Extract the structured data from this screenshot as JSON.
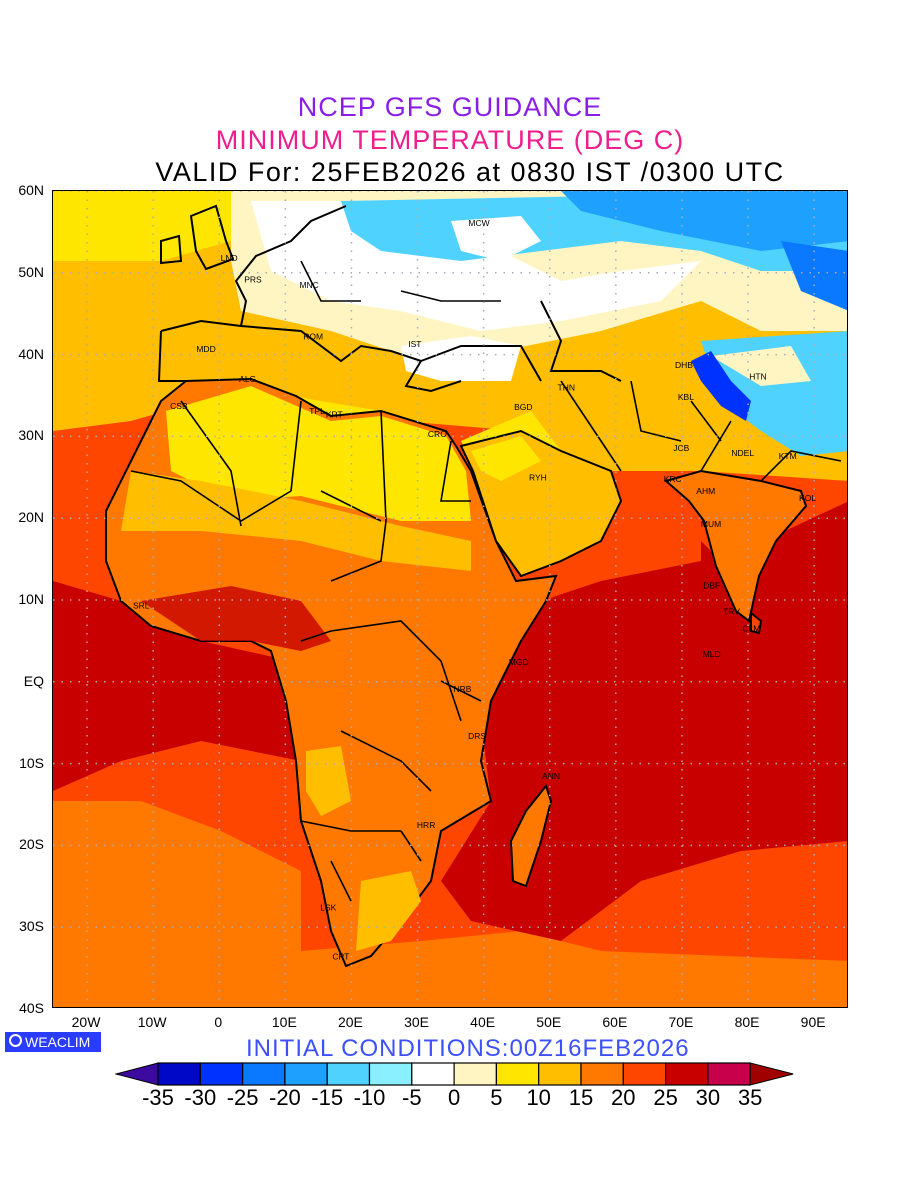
{
  "header": {
    "line1": "NCEP GFS GUIDANCE",
    "line2": "MINIMUM TEMPERATURE (DEG C)",
    "line3": "VALID For: 25FEB2026 at 0830 IST /0300 UTC"
  },
  "axes": {
    "lat_ticks": [
      {
        "value": 60,
        "label": "60N"
      },
      {
        "value": 50,
        "label": "50N"
      },
      {
        "value": 40,
        "label": "40N"
      },
      {
        "value": 30,
        "label": "30N"
      },
      {
        "value": 20,
        "label": "20N"
      },
      {
        "value": 10,
        "label": "10N"
      },
      {
        "value": 0,
        "label": "EQ"
      },
      {
        "value": -10,
        "label": "10S"
      },
      {
        "value": -20,
        "label": "20S"
      },
      {
        "value": -30,
        "label": "30S"
      },
      {
        "value": -40,
        "label": "40S"
      }
    ],
    "lon_ticks": [
      {
        "value": -20,
        "label": "20W"
      },
      {
        "value": -10,
        "label": "10W"
      },
      {
        "value": 0,
        "label": "0"
      },
      {
        "value": 10,
        "label": "10E"
      },
      {
        "value": 20,
        "label": "20E"
      },
      {
        "value": 30,
        "label": "30E"
      },
      {
        "value": 40,
        "label": "40E"
      },
      {
        "value": 50,
        "label": "50E"
      },
      {
        "value": 60,
        "label": "60E"
      },
      {
        "value": 70,
        "label": "70E"
      },
      {
        "value": 80,
        "label": "80E"
      },
      {
        "value": 90,
        "label": "90E"
      }
    ],
    "lon_range": [
      -25,
      95
    ],
    "lat_range": [
      -40,
      60
    ]
  },
  "cities": [
    {
      "name": "MCW",
      "lon": 39.3,
      "lat": 56.1
    },
    {
      "name": "LND",
      "lon": 1.5,
      "lat": 51.8
    },
    {
      "name": "PRS",
      "lon": 5.1,
      "lat": 49.2
    },
    {
      "name": "MNC",
      "lon": 13.6,
      "lat": 48.5
    },
    {
      "name": "ROM",
      "lon": 14.2,
      "lat": 42.2
    },
    {
      "name": "MDD",
      "lon": -2,
      "lat": 40.7
    },
    {
      "name": "IST",
      "lon": 29.6,
      "lat": 41.3
    },
    {
      "name": "ALG",
      "lon": 4.3,
      "lat": 37
    },
    {
      "name": "CSB",
      "lon": -6.1,
      "lat": 33.7
    },
    {
      "name": "TPL",
      "lon": 14.8,
      "lat": 33.1
    },
    {
      "name": "KRT",
      "lon": 17.4,
      "lat": 32.7
    },
    {
      "name": "CRO",
      "lon": 33,
      "lat": 30.3
    },
    {
      "name": "BGD",
      "lon": 46,
      "lat": 33.6
    },
    {
      "name": "THN",
      "lon": 52.5,
      "lat": 36
    },
    {
      "name": "RYH",
      "lon": 48.2,
      "lat": 25
    },
    {
      "name": "DHB",
      "lon": 70.3,
      "lat": 38.7
    },
    {
      "name": "HTN",
      "lon": 81.5,
      "lat": 37.3
    },
    {
      "name": "KBL",
      "lon": 70.6,
      "lat": 34.8
    },
    {
      "name": "JCB",
      "lon": 69.9,
      "lat": 28.6
    },
    {
      "name": "NDEL",
      "lon": 79.2,
      "lat": 28
    },
    {
      "name": "KTM",
      "lon": 86,
      "lat": 27.6
    },
    {
      "name": "KRC",
      "lon": 68.6,
      "lat": 24.8
    },
    {
      "name": "AHM",
      "lon": 73.6,
      "lat": 23.3
    },
    {
      "name": "KOL",
      "lon": 89,
      "lat": 22.5
    },
    {
      "name": "MUM",
      "lon": 74.4,
      "lat": 19.3
    },
    {
      "name": "DBF",
      "lon": 74.5,
      "lat": 11.8
    },
    {
      "name": "TRV",
      "lon": 77.5,
      "lat": 8.6
    },
    {
      "name": "CLM",
      "lon": 80.5,
      "lat": 6.5
    },
    {
      "name": "MLD",
      "lon": 74.5,
      "lat": 3.4
    },
    {
      "name": "SRL",
      "lon": -11.8,
      "lat": 9.3
    },
    {
      "name": "MGD",
      "lon": 45.3,
      "lat": 2.4
    },
    {
      "name": "NRB",
      "lon": 36.8,
      "lat": -0.9
    },
    {
      "name": "DRS",
      "lon": 39,
      "lat": -6.6
    },
    {
      "name": "ANN",
      "lon": 50.2,
      "lat": -11.5
    },
    {
      "name": "HRR",
      "lon": 31.3,
      "lat": -17.5
    },
    {
      "name": "LSK",
      "lon": 16.5,
      "lat": -27.6
    },
    {
      "name": "CPT",
      "lon": 18.4,
      "lat": -33.6
    }
  ],
  "footer": {
    "logo": "WEACLIM",
    "initial": "INITIAL CONDITIONS:00Z16FEB2026"
  },
  "colorbar": {
    "labels": [
      "-35",
      "-30",
      "-25",
      "-20",
      "-15",
      "-10",
      "-5",
      "0",
      "5",
      "10",
      "15",
      "20",
      "25",
      "30",
      "35"
    ],
    "colors": [
      "#0008c8",
      "#0032ff",
      "#0a78ff",
      "#1ea0ff",
      "#50d2ff",
      "#8af0ff",
      "#ffffff",
      "#fff5c3",
      "#ffe600",
      "#ffbe00",
      "#ff7800",
      "#ff4600",
      "#c80000",
      "#c8004b"
    ],
    "low_arrow": "#3c0a9e",
    "high_arrow": "#a00000"
  }
}
